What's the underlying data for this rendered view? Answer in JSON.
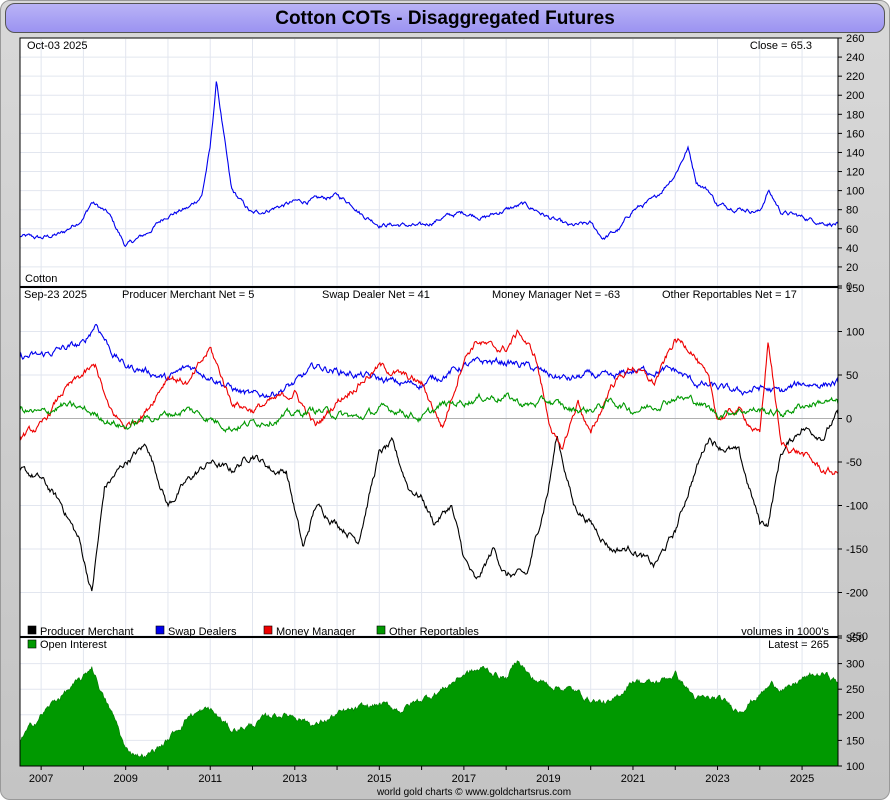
{
  "title": "Cotton COTs - Disaggregated Futures",
  "footer": "world gold charts © www.goldchartsrus.com",
  "panels": {
    "price": {
      "date_label": "Oct-03  2025",
      "close_label": "Close = 65.3",
      "series_label": "Cotton"
    },
    "cot": {
      "date_label": "Sep-23  2025",
      "stats": [
        "Producer Merchant Net = 5",
        "Swap Dealer Net = 41",
        "Money Manager Net = -63",
        "Other Reportables Net = 17"
      ],
      "legend": [
        {
          "label": "Producer Merchant",
          "color": "#000000"
        },
        {
          "label": "Swap Dealers",
          "color": "#0000ee"
        },
        {
          "label": "Money Manager",
          "color": "#ee0000"
        },
        {
          "label": "Other Reportables",
          "color": "#009900"
        }
      ],
      "volume_note": "volumes in 1000's"
    },
    "oi": {
      "legend_label": "Open Interest",
      "legend_color": "#009900",
      "latest_label": "Latest = 265"
    }
  },
  "chart_data": [
    {
      "type": "line",
      "name": "price",
      "ylim": [
        0,
        260
      ],
      "yticks": [
        0,
        20,
        40,
        60,
        80,
        100,
        120,
        140,
        160,
        180,
        200,
        220,
        240,
        260
      ],
      "xlim": [
        2006.5,
        2025.85
      ],
      "series": [
        {
          "name": "Cotton",
          "color": "#0000ee",
          "x": [
            2006.5,
            2007.0,
            2007.5,
            2008.0,
            2008.2,
            2008.6,
            2009.0,
            2009.5,
            2010.0,
            2010.5,
            2010.8,
            2011.0,
            2011.15,
            2011.3,
            2011.5,
            2011.6,
            2011.8,
            2012.0,
            2012.5,
            2013.0,
            2013.5,
            2014.0,
            2014.4,
            2014.6,
            2015.0,
            2015.5,
            2016.0,
            2016.5,
            2017.0,
            2017.5,
            2018.0,
            2018.4,
            2018.7,
            2019.0,
            2019.5,
            2020.0,
            2020.3,
            2020.7,
            2021.0,
            2021.5,
            2022.0,
            2022.3,
            2022.5,
            2022.8,
            2023.0,
            2023.5,
            2024.0,
            2024.2,
            2024.5,
            2025.0,
            2025.5,
            2025.85
          ],
          "values": [
            52,
            50,
            55,
            72,
            88,
            75,
            42,
            55,
            75,
            82,
            95,
            145,
            215,
            165,
            100,
            95,
            85,
            75,
            82,
            88,
            90,
            95,
            85,
            75,
            65,
            64,
            62,
            72,
            77,
            72,
            80,
            85,
            80,
            72,
            62,
            65,
            50,
            60,
            80,
            90,
            118,
            145,
            110,
            100,
            85,
            82,
            78,
            100,
            78,
            72,
            67,
            65.3
          ]
        }
      ]
    },
    {
      "type": "line",
      "name": "cot_positions",
      "ylim": [
        -250,
        150
      ],
      "yticks": [
        -250,
        -200,
        -150,
        -100,
        -50,
        0,
        50,
        100,
        150
      ],
      "xlim": [
        2006.5,
        2025.85
      ],
      "series": [
        {
          "name": "Producer Merchant",
          "color": "#000000",
          "x": [
            2006.5,
            2007.0,
            2007.5,
            2007.9,
            2008.2,
            2008.5,
            2009.0,
            2009.5,
            2010.0,
            2010.5,
            2011.0,
            2011.5,
            2012.0,
            2012.5,
            2012.8,
            2013.2,
            2013.5,
            2014.0,
            2014.5,
            2015.0,
            2015.3,
            2015.7,
            2016.0,
            2016.3,
            2016.7,
            2017.0,
            2017.3,
            2017.7,
            2018.0,
            2018.5,
            2019.0,
            2019.2,
            2019.6,
            2020.0,
            2020.5,
            2021.0,
            2021.5,
            2022.0,
            2022.4,
            2022.8,
            2023.0,
            2023.5,
            2024.0,
            2024.2,
            2024.5,
            2025.0,
            2025.5,
            2025.85
          ],
          "values": [
            -60,
            -70,
            -100,
            -140,
            -200,
            -80,
            -50,
            -30,
            -100,
            -70,
            -50,
            -60,
            -40,
            -60,
            -60,
            -150,
            -100,
            -120,
            -140,
            -40,
            -30,
            -80,
            -90,
            -120,
            -100,
            -160,
            -190,
            -150,
            -180,
            -180,
            -80,
            -20,
            -100,
            -120,
            -150,
            -150,
            -170,
            -130,
            -70,
            -20,
            -30,
            -40,
            -120,
            -120,
            -40,
            -10,
            -20,
            5
          ]
        },
        {
          "name": "Swap Dealers",
          "color": "#0000ee",
          "x": [
            2006.5,
            2007.0,
            2007.5,
            2008.0,
            2008.3,
            2008.7,
            2009.0,
            2009.5,
            2010.0,
            2010.5,
            2011.0,
            2011.5,
            2012.0,
            2012.5,
            2013.0,
            2013.5,
            2014.0,
            2014.5,
            2015.0,
            2015.5,
            2016.0,
            2016.5,
            2017.0,
            2017.5,
            2018.0,
            2018.5,
            2019.0,
            2019.5,
            2020.0,
            2020.5,
            2021.0,
            2021.5,
            2022.0,
            2022.5,
            2023.0,
            2023.5,
            2024.0,
            2024.5,
            2025.0,
            2025.5,
            2025.85
          ],
          "values": [
            70,
            72,
            80,
            85,
            110,
            75,
            60,
            55,
            45,
            60,
            50,
            35,
            25,
            30,
            40,
            60,
            55,
            50,
            45,
            40,
            40,
            50,
            60,
            65,
            65,
            60,
            50,
            45,
            50,
            45,
            55,
            55,
            55,
            40,
            35,
            30,
            35,
            30,
            40,
            40,
            41
          ]
        },
        {
          "name": "Money Manager",
          "color": "#ee0000",
          "x": [
            2006.5,
            2007.0,
            2007.5,
            2008.0,
            2008.3,
            2008.6,
            2009.0,
            2009.5,
            2010.0,
            2010.5,
            2011.0,
            2011.5,
            2012.0,
            2012.5,
            2013.0,
            2013.5,
            2014.0,
            2014.5,
            2015.0,
            2015.5,
            2016.0,
            2016.5,
            2017.0,
            2017.3,
            2017.7,
            2018.0,
            2018.3,
            2018.7,
            2019.0,
            2019.3,
            2019.7,
            2020.0,
            2020.5,
            2021.0,
            2021.5,
            2022.0,
            2022.4,
            2022.8,
            2023.0,
            2023.5,
            2024.0,
            2024.2,
            2024.5,
            2025.0,
            2025.5,
            2025.85
          ],
          "values": [
            -20,
            -10,
            30,
            50,
            60,
            10,
            -10,
            10,
            50,
            40,
            80,
            20,
            10,
            20,
            30,
            -10,
            20,
            40,
            60,
            50,
            40,
            -10,
            70,
            90,
            80,
            80,
            100,
            70,
            0,
            -40,
            20,
            -20,
            40,
            60,
            40,
            90,
            80,
            40,
            0,
            10,
            -20,
            90,
            -30,
            -40,
            -60,
            -63
          ]
        },
        {
          "name": "Other Reportables",
          "color": "#009900",
          "x": [
            2006.5,
            2007.0,
            2007.5,
            2008.0,
            2008.5,
            2009.0,
            2009.5,
            2010.0,
            2010.5,
            2011.0,
            2011.5,
            2012.0,
            2012.5,
            2013.0,
            2013.5,
            2014.0,
            2014.5,
            2015.0,
            2015.5,
            2016.0,
            2016.5,
            2017.0,
            2017.5,
            2018.0,
            2018.5,
            2019.0,
            2019.5,
            2020.0,
            2020.5,
            2021.0,
            2021.5,
            2022.0,
            2022.5,
            2023.0,
            2023.5,
            2024.0,
            2024.5,
            2025.0,
            2025.5,
            2025.85
          ],
          "values": [
            10,
            5,
            15,
            10,
            0,
            -10,
            0,
            5,
            10,
            0,
            -10,
            -5,
            0,
            5,
            10,
            5,
            0,
            10,
            10,
            0,
            15,
            20,
            25,
            25,
            15,
            20,
            10,
            10,
            20,
            10,
            15,
            25,
            20,
            5,
            10,
            10,
            5,
            15,
            20,
            17
          ]
        }
      ]
    },
    {
      "type": "area",
      "name": "open_interest",
      "ylim": [
        100,
        350
      ],
      "yticks": [
        100,
        150,
        200,
        250,
        300,
        350
      ],
      "xlim": [
        2006.5,
        2025.85
      ],
      "series": [
        {
          "name": "Open Interest",
          "color": "#009900",
          "x": [
            2006.5,
            2007.0,
            2007.5,
            2008.0,
            2008.2,
            2008.5,
            2008.8,
            2009.0,
            2009.5,
            2010.0,
            2010.5,
            2011.0,
            2011.5,
            2012.0,
            2012.5,
            2013.0,
            2013.5,
            2014.0,
            2014.5,
            2015.0,
            2015.5,
            2016.0,
            2016.5,
            2017.0,
            2017.5,
            2018.0,
            2018.3,
            2018.6,
            2019.0,
            2019.5,
            2020.0,
            2020.5,
            2021.0,
            2021.5,
            2022.0,
            2022.5,
            2023.0,
            2023.5,
            2024.0,
            2024.3,
            2024.7,
            2025.0,
            2025.5,
            2025.85
          ],
          "values": [
            150,
            200,
            240,
            270,
            295,
            230,
            180,
            130,
            120,
            150,
            200,
            210,
            170,
            180,
            200,
            200,
            180,
            200,
            210,
            220,
            210,
            230,
            250,
            280,
            290,
            270,
            310,
            270,
            260,
            250,
            230,
            220,
            270,
            260,
            280,
            230,
            230,
            210,
            240,
            260,
            250,
            270,
            280,
            265
          ]
        }
      ]
    }
  ],
  "x_axis": {
    "tick_labels": [
      "2007",
      "2009",
      "2011",
      "2013",
      "2015",
      "2017",
      "2019",
      "2021",
      "2023",
      "2025"
    ],
    "tick_values": [
      2007,
      2009,
      2011,
      2013,
      2015,
      2017,
      2019,
      2021,
      2023,
      2025
    ]
  }
}
